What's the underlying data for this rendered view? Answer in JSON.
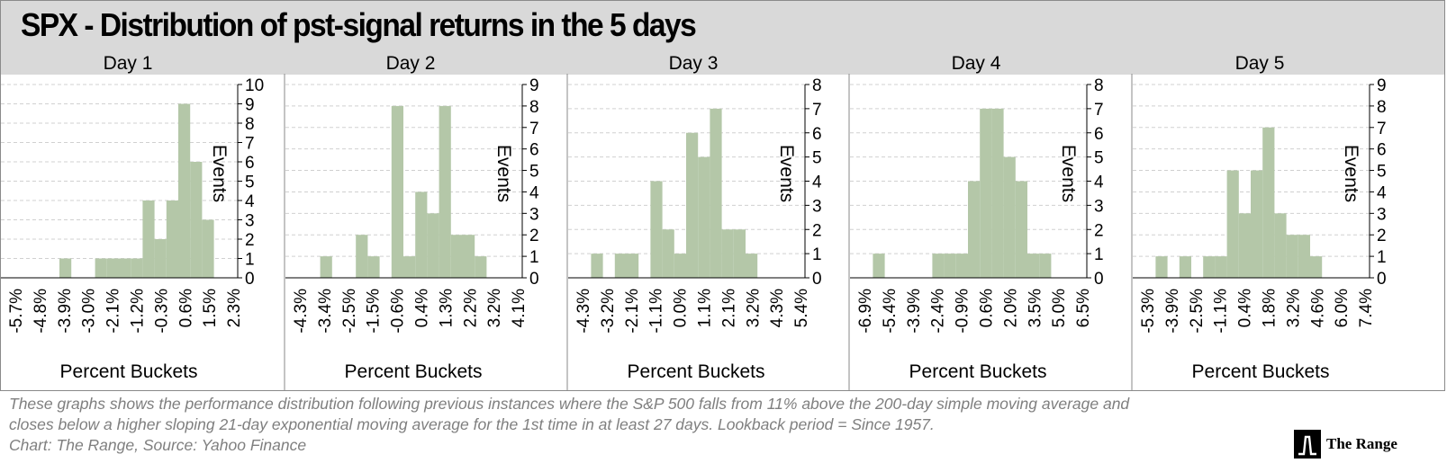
{
  "title": "SPX  - Distribution of pst-signal returns in the 5 days",
  "bar_color": "#b4c7a8",
  "caption_lines": [
    "These graphs shows the performance distribution following previous instances where the S&P 500 falls from 11% above the 200-day simple moving average and",
    "closes below a higher sloping 21-day exponential moving average for the 1st time in at least 27 days. Lookback period = Since 1957.",
    "Chart: The Range, Source: Yahoo Finance"
  ],
  "logo_text": "The Range",
  "chart_data": [
    {
      "type": "bar",
      "title": "Day 1",
      "xlabel": "Percent Buckets",
      "ylabel": "Events",
      "ylim": [
        0,
        10
      ],
      "yticks": [
        0,
        1,
        2,
        3,
        4,
        5,
        6,
        7,
        8,
        9,
        10
      ],
      "tick_labels": [
        "-5.7%",
        "-4.8%",
        "-3.9%",
        "-3.0%",
        "-2.1%",
        "-1.2%",
        "-0.3%",
        "0.6%",
        "1.5%",
        "2.3%"
      ],
      "values": [
        0,
        0,
        0,
        0,
        0,
        1,
        0,
        0,
        1,
        1,
        1,
        1,
        4,
        2,
        4,
        9,
        6,
        3,
        0,
        0
      ]
    },
    {
      "type": "bar",
      "title": "Day 2",
      "xlabel": "Percent Buckets",
      "ylabel": "Events",
      "ylim": [
        0,
        9
      ],
      "yticks": [
        0,
        1,
        2,
        3,
        4,
        5,
        6,
        7,
        8,
        9
      ],
      "tick_labels": [
        "-4.3%",
        "-3.4%",
        "-2.5%",
        "-1.5%",
        "-0.6%",
        "0.4%",
        "1.3%",
        "2.2%",
        "3.2%",
        "4.1%"
      ],
      "values": [
        0,
        0,
        0,
        1,
        0,
        0,
        2,
        1,
        0,
        8,
        1,
        4,
        3,
        8,
        2,
        2,
        1,
        0,
        0,
        0
      ]
    },
    {
      "type": "bar",
      "title": "Day 3",
      "xlabel": "Percent Buckets",
      "ylabel": "Events",
      "ylim": [
        0,
        8
      ],
      "yticks": [
        0,
        1,
        2,
        3,
        4,
        5,
        6,
        7,
        8
      ],
      "tick_labels": [
        "-4.3%",
        "-3.2%",
        "-2.1%",
        "-1.1%",
        "0.0%",
        "1.1%",
        "2.1%",
        "3.2%",
        "4.3%",
        "5.4%"
      ],
      "values": [
        0,
        0,
        1,
        0,
        1,
        1,
        0,
        4,
        2,
        1,
        6,
        5,
        7,
        2,
        2,
        1,
        0,
        0,
        0,
        0
      ]
    },
    {
      "type": "bar",
      "title": "Day 4",
      "xlabel": "Percent Buckets",
      "ylabel": "Events",
      "ylim": [
        0,
        8
      ],
      "yticks": [
        0,
        1,
        2,
        3,
        4,
        5,
        6,
        7,
        8
      ],
      "tick_labels": [
        "-6.9%",
        "-5.4%",
        "-3.9%",
        "-2.4%",
        "-0.9%",
        "0.6%",
        "2.0%",
        "3.5%",
        "5.0%",
        "6.5%"
      ],
      "values": [
        0,
        0,
        1,
        0,
        0,
        0,
        0,
        1,
        1,
        1,
        4,
        7,
        7,
        5,
        4,
        1,
        1,
        0,
        0,
        0
      ]
    },
    {
      "type": "bar",
      "title": "Day 5",
      "xlabel": "Percent Buckets",
      "ylabel": "Events",
      "ylim": [
        0,
        9
      ],
      "yticks": [
        0,
        1,
        2,
        3,
        4,
        5,
        6,
        7,
        8,
        9
      ],
      "tick_labels": [
        "-5.3%",
        "-3.9%",
        "-2.5%",
        "-1.1%",
        "0.4%",
        "1.8%",
        "3.2%",
        "4.6%",
        "6.0%",
        "7.4%"
      ],
      "values": [
        0,
        0,
        1,
        0,
        1,
        0,
        1,
        1,
        5,
        3,
        5,
        7,
        3,
        2,
        2,
        1,
        0,
        0,
        0,
        0
      ]
    }
  ]
}
